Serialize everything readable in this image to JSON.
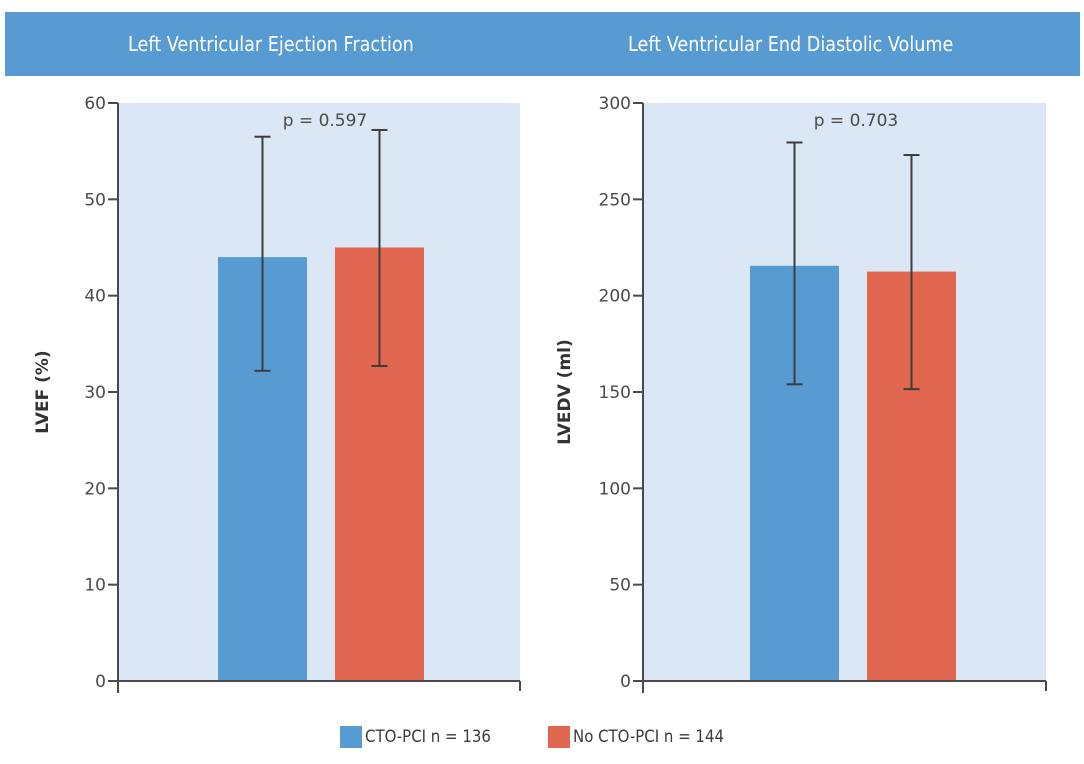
{
  "header": {
    "titles": [
      "Left Ventricular Ejection Fraction",
      "Left Ventricular End Diastolic Volume"
    ]
  },
  "colors": {
    "header_bg": "#589bd2",
    "plot_bg": "#dbe7f5",
    "cto_pci": "#589bd2",
    "no_cto_pci": "#e06650",
    "axis": "#4a4a4a"
  },
  "legend": {
    "items": [
      {
        "label": "CTO-PCI n = 136",
        "color": "#589bd2"
      },
      {
        "label": "No CTO-PCI n = 144",
        "color": "#e06650"
      }
    ]
  },
  "chart_data": [
    {
      "type": "bar",
      "title": "Left Ventricular Ejection Fraction",
      "xlabel": "",
      "ylabel": "LVEF (%)",
      "ylim": [
        0,
        60
      ],
      "yticks": [
        0,
        10,
        20,
        30,
        40,
        50,
        60
      ],
      "annotation": "p = 0.597",
      "grid": false,
      "legend_position": "bottom",
      "categories": [
        "CTO-PCI n = 136",
        "No CTO-PCI n = 144"
      ],
      "series": [
        {
          "name": "CTO-PCI n = 136",
          "values": [
            44.0
          ],
          "error_low": [
            32.2
          ],
          "error_high": [
            56.5
          ]
        },
        {
          "name": "No CTO-PCI n = 144",
          "values": [
            45.0
          ],
          "error_low": [
            32.7
          ],
          "error_high": [
            57.2
          ]
        }
      ]
    },
    {
      "type": "bar",
      "title": "Left Ventricular End Diastolic Volume",
      "xlabel": "",
      "ylabel": "LVEDV (ml)",
      "ylim": [
        0,
        300
      ],
      "yticks": [
        0,
        50,
        100,
        150,
        200,
        250,
        300
      ],
      "annotation": "p = 0.703",
      "grid": false,
      "legend_position": "bottom",
      "categories": [
        "CTO-PCI n = 136",
        "No CTO-PCI n = 144"
      ],
      "series": [
        {
          "name": "CTO-PCI n = 136",
          "values": [
            215.5
          ],
          "error_low": [
            154.0
          ],
          "error_high": [
            279.5
          ]
        },
        {
          "name": "No CTO-PCI n = 144",
          "values": [
            212.5
          ],
          "error_low": [
            151.5
          ],
          "error_high": [
            273.0
          ]
        }
      ]
    }
  ]
}
